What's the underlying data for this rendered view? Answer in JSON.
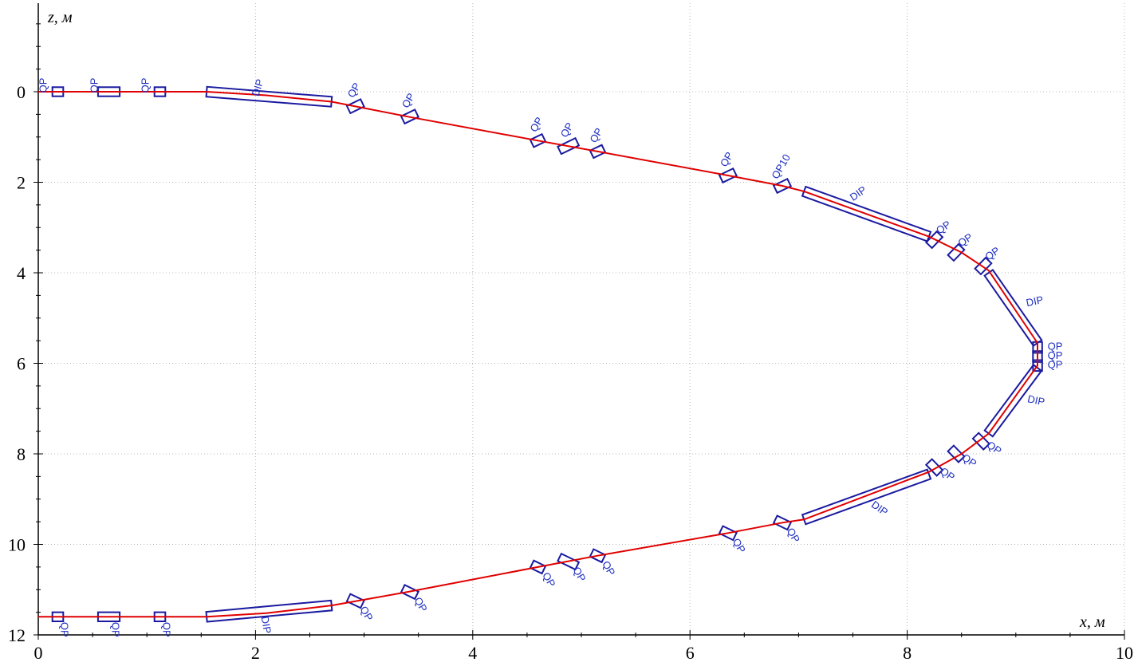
{
  "axes": {
    "x_label": "x, м",
    "z_label": "z, м",
    "x_ticks": [
      "0",
      "2",
      "4",
      "6",
      "8",
      "10"
    ],
    "z_ticks": [
      "0",
      "2",
      "4",
      "6",
      "8",
      "10",
      "12"
    ],
    "xlim": [
      0,
      10
    ],
    "zlim": [
      12,
      -1.8
    ],
    "grid": true
  },
  "colors": {
    "beam": "#e00000",
    "elements": "#1a1aa0",
    "labels": "#2030c0"
  },
  "beam_path": [
    [
      0,
      0
    ],
    [
      1.55,
      0
    ],
    [
      2.1,
      0.08
    ],
    [
      2.7,
      0.22
    ],
    [
      3.4,
      0.55
    ],
    [
      4.6,
      1.08
    ],
    [
      5.15,
      1.32
    ],
    [
      6.35,
      1.85
    ],
    [
      6.85,
      2.08
    ],
    [
      7.05,
      2.2
    ],
    [
      8.2,
      3.2
    ],
    [
      8.5,
      3.55
    ],
    [
      8.75,
      3.95
    ],
    [
      9.2,
      5.55
    ],
    [
      9.2,
      6.05
    ],
    [
      8.75,
      7.55
    ],
    [
      8.5,
      8.0
    ],
    [
      8.2,
      8.4
    ],
    [
      7.05,
      9.45
    ],
    [
      6.85,
      9.52
    ],
    [
      6.35,
      9.75
    ],
    [
      5.15,
      10.25
    ],
    [
      4.6,
      10.5
    ],
    [
      3.4,
      11.05
    ],
    [
      2.7,
      11.35
    ],
    [
      2.1,
      11.52
    ],
    [
      1.55,
      11.6
    ],
    [
      0,
      11.6
    ]
  ],
  "elements": [
    {
      "type": "quad",
      "label": "QP",
      "x": 0.18,
      "z": 0,
      "len": 0.1,
      "w": 0.2,
      "ang": 0,
      "ldx": -14,
      "ldy": -8,
      "lrot": -90
    },
    {
      "type": "quad",
      "label": "QP",
      "x": 0.65,
      "z": 0,
      "len": 0.2,
      "w": 0.2,
      "ang": 0,
      "ldx": -14,
      "ldy": -8,
      "lrot": -90
    },
    {
      "type": "quad",
      "label": "QP",
      "x": 1.12,
      "z": 0,
      "len": 0.1,
      "w": 0.2,
      "ang": 0,
      "ldx": -14,
      "ldy": -8,
      "lrot": -90
    },
    {
      "type": "dip",
      "label": "DIP",
      "x1": 1.55,
      "z1": 0,
      "x2": 2.7,
      "z2": 0.22,
      "w": 0.22,
      "ldx": -10,
      "ldy": -10,
      "lrot": -72
    },
    {
      "type": "quad",
      "label": "QP",
      "x": 2.92,
      "z": 0.32,
      "len": 0.14,
      "w": 0.18,
      "ang": -0.45,
      "ldx": 2,
      "ldy": -18,
      "lrot": -60
    },
    {
      "type": "quad",
      "label": "QP",
      "x": 3.42,
      "z": 0.55,
      "len": 0.14,
      "w": 0.18,
      "ang": -0.45,
      "ldx": 2,
      "ldy": -18,
      "lrot": -60
    },
    {
      "type": "quad",
      "label": "QP",
      "x": 4.6,
      "z": 1.08,
      "len": 0.12,
      "w": 0.18,
      "ang": -0.45,
      "ldx": 2,
      "ldy": -18,
      "lrot": -60
    },
    {
      "type": "quad",
      "label": "QP",
      "x": 4.88,
      "z": 1.2,
      "len": 0.18,
      "w": 0.18,
      "ang": -0.45,
      "ldx": 2,
      "ldy": -18,
      "lrot": -60
    },
    {
      "type": "quad",
      "label": "QP",
      "x": 5.15,
      "z": 1.32,
      "len": 0.12,
      "w": 0.18,
      "ang": -0.45,
      "ldx": 2,
      "ldy": -18,
      "lrot": -60
    },
    {
      "type": "quad",
      "label": "QP",
      "x": 6.35,
      "z": 1.85,
      "len": 0.14,
      "w": 0.18,
      "ang": -0.45,
      "ldx": 2,
      "ldy": -18,
      "lrot": -60
    },
    {
      "type": "quad",
      "label": "QP10",
      "x": 6.85,
      "z": 2.08,
      "len": 0.14,
      "w": 0.18,
      "ang": -0.45,
      "ldx": 2,
      "ldy": -22,
      "lrot": -60
    },
    {
      "type": "dip",
      "label": "DIP",
      "x1": 7.05,
      "z1": 2.2,
      "x2": 8.2,
      "z2": 3.2,
      "w": 0.22,
      "ldx": -8,
      "ldy": -22,
      "lrot": -35
    },
    {
      "type": "quad",
      "label": "QP",
      "x": 8.25,
      "z": 3.27,
      "len": 0.14,
      "w": 0.18,
      "ang": -0.8,
      "ldx": 14,
      "ldy": -12,
      "lrot": -35
    },
    {
      "type": "quad",
      "label": "QP",
      "x": 8.45,
      "z": 3.55,
      "len": 0.14,
      "w": 0.18,
      "ang": -0.8,
      "ldx": 14,
      "ldy": -12,
      "lrot": -35
    },
    {
      "type": "quad",
      "label": "QP",
      "x": 8.7,
      "z": 3.85,
      "len": 0.14,
      "w": 0.18,
      "ang": -0.8,
      "ldx": 14,
      "ldy": -12,
      "lrot": -35
    },
    {
      "type": "dip",
      "label": "DIP",
      "x1": 8.75,
      "z1": 4.0,
      "x2": 9.2,
      "z2": 5.55,
      "w": 0.22,
      "ldx": 28,
      "ldy": -4,
      "lrot": -12
    },
    {
      "type": "quad",
      "label": "QP",
      "x": 9.2,
      "z": 5.65,
      "len": 0.1,
      "w": 0.2,
      "ang": -1.5708,
      "ldx": 22,
      "ldy": 3,
      "lrot": 0
    },
    {
      "type": "quad",
      "label": "QP",
      "x": 9.2,
      "z": 5.85,
      "len": 0.1,
      "w": 0.2,
      "ang": -1.5708,
      "ldx": 22,
      "ldy": 3,
      "lrot": 0
    },
    {
      "type": "quad",
      "label": "QP",
      "x": 9.2,
      "z": 6.05,
      "len": 0.1,
      "w": 0.2,
      "ang": -1.5708,
      "ldx": 22,
      "ldy": 3,
      "lrot": 0
    },
    {
      "type": "dip",
      "label": "DIP",
      "x1": 9.2,
      "z1": 6.1,
      "x2": 8.75,
      "z2": 7.55,
      "w": 0.22,
      "ldx": 28,
      "ldy": 4,
      "lrot": 12
    },
    {
      "type": "quad",
      "label": "QP",
      "x": 8.68,
      "z": 7.72,
      "len": 0.14,
      "w": 0.18,
      "ang": 0.8,
      "ldx": 14,
      "ldy": 12,
      "lrot": 35
    },
    {
      "type": "quad",
      "label": "QP",
      "x": 8.45,
      "z": 8.0,
      "len": 0.14,
      "w": 0.18,
      "ang": 0.8,
      "ldx": 14,
      "ldy": 12,
      "lrot": 35
    },
    {
      "type": "quad",
      "label": "QP",
      "x": 8.25,
      "z": 8.3,
      "len": 0.14,
      "w": 0.18,
      "ang": 0.8,
      "ldx": 14,
      "ldy": 12,
      "lrot": 35
    },
    {
      "type": "dip",
      "label": "DIP",
      "x1": 8.2,
      "z1": 8.45,
      "x2": 7.05,
      "z2": 9.45,
      "w": 0.22,
      "ldx": 14,
      "ldy": 18,
      "lrot": 35
    },
    {
      "type": "quad",
      "label": "QP",
      "x": 6.85,
      "z": 9.52,
      "len": 0.14,
      "w": 0.18,
      "ang": 0.45,
      "ldx": 10,
      "ldy": 18,
      "lrot": 60
    },
    {
      "type": "quad",
      "label": "QP",
      "x": 6.35,
      "z": 9.75,
      "len": 0.14,
      "w": 0.18,
      "ang": 0.45,
      "ldx": 10,
      "ldy": 18,
      "lrot": 60
    },
    {
      "type": "quad",
      "label": "QP",
      "x": 5.15,
      "z": 10.25,
      "len": 0.12,
      "w": 0.18,
      "ang": 0.45,
      "ldx": 10,
      "ldy": 18,
      "lrot": 60
    },
    {
      "type": "quad",
      "label": "QP",
      "x": 4.88,
      "z": 10.38,
      "len": 0.18,
      "w": 0.18,
      "ang": 0.45,
      "ldx": 10,
      "ldy": 18,
      "lrot": 60
    },
    {
      "type": "quad",
      "label": "QP",
      "x": 4.6,
      "z": 10.5,
      "len": 0.12,
      "w": 0.18,
      "ang": 0.45,
      "ldx": 10,
      "ldy": 18,
      "lrot": 60
    },
    {
      "type": "quad",
      "label": "QP",
      "x": 3.42,
      "z": 11.05,
      "len": 0.14,
      "w": 0.18,
      "ang": 0.45,
      "ldx": 10,
      "ldy": 18,
      "lrot": 60
    },
    {
      "type": "quad",
      "label": "QP",
      "x": 2.92,
      "z": 11.25,
      "len": 0.14,
      "w": 0.18,
      "ang": 0.45,
      "ldx": 10,
      "ldy": 18,
      "lrot": 60
    },
    {
      "type": "dip",
      "label": "DIP",
      "x1": 2.7,
      "z1": 11.35,
      "x2": 1.55,
      "z2": 11.6,
      "w": 0.22,
      "ldx": -8,
      "ldy": 18,
      "lrot": 80
    },
    {
      "type": "quad",
      "label": "QP",
      "x": 1.12,
      "z": 11.6,
      "len": 0.1,
      "w": 0.2,
      "ang": 0,
      "ldx": 4,
      "ldy": 16,
      "lrot": 90
    },
    {
      "type": "quad",
      "label": "QP",
      "x": 0.65,
      "z": 11.6,
      "len": 0.2,
      "w": 0.2,
      "ang": 0,
      "ldx": 4,
      "ldy": 16,
      "lrot": 90
    },
    {
      "type": "quad",
      "label": "QP",
      "x": 0.18,
      "z": 11.6,
      "len": 0.1,
      "w": 0.2,
      "ang": 0,
      "ldx": 4,
      "ldy": 16,
      "lrot": 90
    }
  ]
}
